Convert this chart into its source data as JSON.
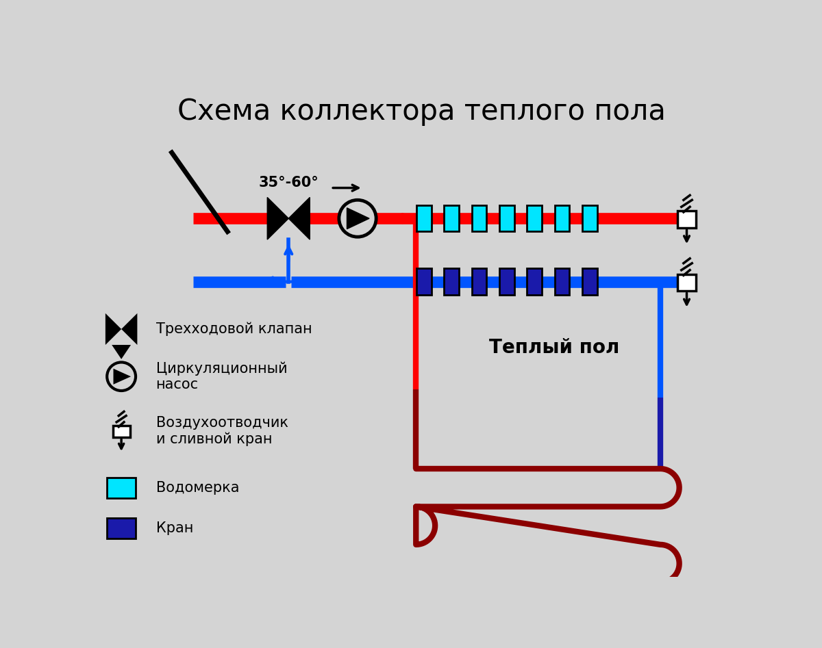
{
  "title": "Схема коллектора теплого пола",
  "bg_color": "#d4d4d4",
  "red_color": "#ff0000",
  "blue_color": "#0055ff",
  "dark_red_color": "#8B0000",
  "cyan_color": "#00e5ff",
  "dark_blue_color": "#1a1aaa",
  "black_color": "#000000",
  "white_color": "#ffffff",
  "temp_label": "35°-60°",
  "warm_floor_label": "Теплый пол",
  "legend": [
    "Трехходовой клапан",
    "Циркуляционный\nнасос",
    "Воздухоотводчик\nи сливной кран",
    "Водомерка",
    "Кран"
  ]
}
